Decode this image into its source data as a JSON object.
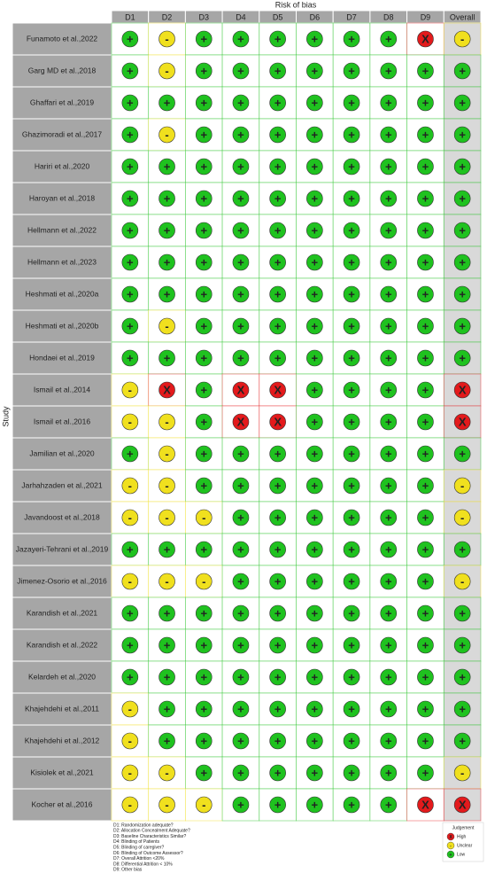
{
  "chart_data": {
    "type": "traffic-light",
    "title": "Risk of bias",
    "y_label": "Study",
    "columns": [
      "D1",
      "D2",
      "D3",
      "D4",
      "D5",
      "D6",
      "D7",
      "D8",
      "D9",
      "Overall"
    ],
    "rows": [
      {
        "study": "Funamoto et al.,2022",
        "judgements": [
          "+",
          "-",
          "+",
          "+",
          "+",
          "+",
          "+",
          "+",
          "X",
          "-"
        ]
      },
      {
        "study": "Garg MD et al.,2018",
        "judgements": [
          "+",
          "-",
          "+",
          "+",
          "+",
          "+",
          "+",
          "+",
          "+",
          "+"
        ]
      },
      {
        "study": "Ghaffari et al.,2019",
        "judgements": [
          "+",
          "+",
          "+",
          "+",
          "+",
          "+",
          "+",
          "+",
          "+",
          "+"
        ]
      },
      {
        "study": "Ghazimoradi et al.,2017",
        "judgements": [
          "+",
          "-",
          "+",
          "+",
          "+",
          "+",
          "+",
          "+",
          "+",
          "+"
        ]
      },
      {
        "study": "Hariri et al.,2020",
        "judgements": [
          "+",
          "+",
          "+",
          "+",
          "+",
          "+",
          "+",
          "+",
          "+",
          "+"
        ]
      },
      {
        "study": "Haroyan et al.,2018",
        "judgements": [
          "+",
          "+",
          "+",
          "+",
          "+",
          "+",
          "+",
          "+",
          "+",
          "+"
        ]
      },
      {
        "study": "Hellmann et al.,2022",
        "judgements": [
          "+",
          "+",
          "+",
          "+",
          "+",
          "+",
          "+",
          "+",
          "+",
          "+"
        ]
      },
      {
        "study": "Hellmann et al.,2023",
        "judgements": [
          "+",
          "+",
          "+",
          "+",
          "+",
          "+",
          "+",
          "+",
          "+",
          "+"
        ]
      },
      {
        "study": "Heshmati et al.,2020a",
        "judgements": [
          "+",
          "+",
          "+",
          "+",
          "+",
          "+",
          "+",
          "+",
          "+",
          "+"
        ]
      },
      {
        "study": "Heshmati et al.,2020b",
        "judgements": [
          "+",
          "-",
          "+",
          "+",
          "+",
          "+",
          "+",
          "+",
          "+",
          "+"
        ]
      },
      {
        "study": "Hondaei et al.,2019",
        "judgements": [
          "+",
          "+",
          "+",
          "+",
          "+",
          "+",
          "+",
          "+",
          "+",
          "+"
        ]
      },
      {
        "study": "Ismail et al.,2014",
        "judgements": [
          "-",
          "X",
          "+",
          "X",
          "X",
          "+",
          "+",
          "+",
          "+",
          "X"
        ]
      },
      {
        "study": "Ismail et al.,2016",
        "judgements": [
          "-",
          "-",
          "+",
          "X",
          "X",
          "+",
          "+",
          "+",
          "+",
          "X"
        ]
      },
      {
        "study": "Jamilian et al.,2020",
        "judgements": [
          "+",
          "-",
          "+",
          "+",
          "+",
          "+",
          "+",
          "+",
          "+",
          "+"
        ]
      },
      {
        "study": "Jarhahzaden et al.,2021",
        "judgements": [
          "-",
          "-",
          "+",
          "+",
          "+",
          "+",
          "+",
          "+",
          "+",
          "-"
        ]
      },
      {
        "study": "Javandoost et al.,2018",
        "judgements": [
          "-",
          "-",
          "-",
          "+",
          "+",
          "+",
          "+",
          "+",
          "+",
          "-"
        ]
      },
      {
        "study": "Jazayeri-Tehrani et al.,2019",
        "judgements": [
          "+",
          "+",
          "+",
          "+",
          "+",
          "+",
          "+",
          "+",
          "+",
          "+"
        ]
      },
      {
        "study": "Jimenez-Osorio et al.,2016",
        "judgements": [
          "-",
          "-",
          "-",
          "+",
          "+",
          "+",
          "+",
          "+",
          "+",
          "-"
        ]
      },
      {
        "study": "Karandish et al.,2021",
        "judgements": [
          "+",
          "+",
          "+",
          "+",
          "+",
          "+",
          "+",
          "+",
          "+",
          "+"
        ]
      },
      {
        "study": "Karandish et al.,2022",
        "judgements": [
          "+",
          "+",
          "+",
          "+",
          "+",
          "+",
          "+",
          "+",
          "+",
          "+"
        ]
      },
      {
        "study": "Kelardeh et al.,2020",
        "judgements": [
          "+",
          "+",
          "+",
          "+",
          "+",
          "+",
          "+",
          "+",
          "+",
          "+"
        ]
      },
      {
        "study": "Khajehdehi et al.,2011",
        "judgements": [
          "-",
          "+",
          "+",
          "+",
          "+",
          "+",
          "+",
          "+",
          "+",
          "+"
        ]
      },
      {
        "study": "Khajehdehi et al.,2012",
        "judgements": [
          "-",
          "+",
          "+",
          "+",
          "+",
          "+",
          "+",
          "+",
          "+",
          "+"
        ]
      },
      {
        "study": "Kisiolek et al.,2021",
        "judgements": [
          "-",
          "-",
          "+",
          "+",
          "+",
          "+",
          "+",
          "+",
          "+",
          "-"
        ]
      },
      {
        "study": "Kocher et al.,2016",
        "judgements": [
          "-",
          "-",
          "-",
          "+",
          "+",
          "+",
          "+",
          "+",
          "X",
          "X"
        ]
      }
    ],
    "legend": {
      "title": "Judgement",
      "items": [
        {
          "symbol": "X",
          "label": "High",
          "color": "#e31a1c"
        },
        {
          "symbol": "-",
          "label": "Unclear",
          "color": "#f0e01e"
        },
        {
          "symbol": "+",
          "label": "Low",
          "color": "#1fc21f"
        }
      ]
    },
    "footnotes": [
      "D1: Randomization adequate?",
      "D2: Allocation Concealment Adequate?",
      "D3: Baseline Characteristics Similar?",
      "D4: Blinding of Patients",
      "D5: Blinding of caregiver?",
      "D6: Blinding of Outcome Assessor?",
      "D7: Overall Attrition <20%",
      "D8: Differential Attrition < 10%",
      "D9: Other bias"
    ]
  }
}
